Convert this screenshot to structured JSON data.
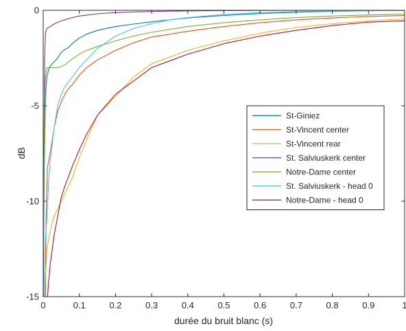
{
  "chart_data": {
    "type": "line",
    "xlabel": "durée du bruit blanc (s)",
    "ylabel": "dB",
    "xlim": [
      0,
      1
    ],
    "ylim": [
      -15,
      0
    ],
    "xticks": [
      0,
      0.1,
      0.2,
      0.3,
      0.4,
      0.5,
      0.6,
      0.7,
      0.8,
      0.9,
      1
    ],
    "xtick_labels": [
      "0",
      "0.1",
      "0.2",
      "0.3",
      "0.4",
      "0.5",
      "0.6",
      "0.7",
      "0.8",
      "0.9",
      "1"
    ],
    "yticks": [
      0,
      -5,
      -10,
      -15
    ],
    "ytick_labels": [
      "0",
      "-5",
      "-10",
      "-15"
    ],
    "grid": false,
    "legend_position": "right",
    "series": [
      {
        "name": "St-Giniez",
        "color": "#0072BD",
        "x": [
          0,
          0.003,
          0.006,
          0.01,
          0.015,
          0.02,
          0.03,
          0.04,
          0.05,
          0.06,
          0.07,
          0.08,
          0.1,
          0.12,
          0.15,
          0.2,
          0.25,
          0.3,
          0.4,
          0.5,
          0.6,
          0.7,
          0.8,
          0.9,
          1.0
        ],
        "y": [
          -15,
          -8,
          -4.5,
          -3.5,
          -3.1,
          -2.9,
          -2.7,
          -2.5,
          -2.2,
          -2.05,
          -1.95,
          -1.75,
          -1.45,
          -1.25,
          -1.05,
          -0.85,
          -0.72,
          -0.6,
          -0.4,
          -0.27,
          -0.17,
          -0.1,
          -0.05,
          -0.02,
          0
        ]
      },
      {
        "name": "St-Vincent center",
        "color": "#D95319",
        "x": [
          0.006,
          0.008,
          0.01,
          0.012,
          0.015,
          0.02,
          0.025,
          0.03,
          0.04,
          0.05,
          0.06,
          0.07,
          0.08,
          0.1,
          0.12,
          0.15,
          0.2,
          0.25,
          0.3,
          0.4,
          0.5,
          0.6,
          0.7,
          0.8,
          0.9,
          1.0
        ],
        "y": [
          -15,
          -11,
          -9.3,
          -8.2,
          -7.9,
          -7.4,
          -6.8,
          -6.2,
          -5.3,
          -4.8,
          -4.4,
          -4.1,
          -3.9,
          -3.4,
          -3.0,
          -2.6,
          -2.1,
          -1.7,
          -1.4,
          -1.1,
          -0.85,
          -0.65,
          -0.5,
          -0.4,
          -0.32,
          -0.27
        ]
      },
      {
        "name": "St-Vincent rear",
        "color": "#EDB120",
        "x": [
          0.004,
          0.006,
          0.008,
          0.01,
          0.015,
          0.02,
          0.03,
          0.04,
          0.05,
          0.06,
          0.08,
          0.1,
          0.12,
          0.15,
          0.2,
          0.25,
          0.3,
          0.4,
          0.5,
          0.6,
          0.7,
          0.8,
          0.9,
          1.0
        ],
        "y": [
          -15,
          -13.8,
          -13.3,
          -12.5,
          -12.0,
          -11.5,
          -10.8,
          -10.4,
          -10.0,
          -9.6,
          -8.8,
          -7.7,
          -6.8,
          -5.5,
          -4.5,
          -3.5,
          -2.8,
          -2.1,
          -1.6,
          -1.2,
          -0.9,
          -0.7,
          -0.55,
          -0.45
        ]
      },
      {
        "name": "St. Salviuskerk center",
        "color": "#7E2F8E",
        "x": [
          0,
          0.002,
          0.004,
          0.006,
          0.01,
          0.015,
          0.02,
          0.03,
          0.05,
          0.08,
          0.1,
          0.15,
          0.2,
          0.3,
          0.4,
          0.5,
          0.7,
          1.0
        ],
        "y": [
          -15,
          -7,
          -2.5,
          -1.2,
          -0.95,
          -0.9,
          -0.85,
          -0.72,
          -0.55,
          -0.38,
          -0.3,
          -0.18,
          -0.12,
          -0.06,
          -0.03,
          -0.015,
          -0.005,
          0
        ]
      },
      {
        "name": "Notre-Dame center",
        "color": "#77AC30",
        "x": [
          0,
          0.002,
          0.004,
          0.006,
          0.01,
          0.015,
          0.02,
          0.03,
          0.04,
          0.05,
          0.06,
          0.08,
          0.1,
          0.12,
          0.15,
          0.2,
          0.25,
          0.3,
          0.4,
          0.5,
          0.6,
          0.7,
          0.8,
          0.9,
          1.0
        ],
        "y": [
          -15,
          -8,
          -4.5,
          -3.5,
          -3.0,
          -3.0,
          -3.0,
          -3.0,
          -3.0,
          -2.95,
          -2.85,
          -2.55,
          -2.3,
          -2.1,
          -1.9,
          -1.6,
          -1.35,
          -1.15,
          -0.85,
          -0.65,
          -0.5,
          -0.38,
          -0.3,
          -0.24,
          -0.2
        ]
      },
      {
        "name": "St. Salviuskerk - head 0",
        "color": "#4DBEEE",
        "x": [
          0.002,
          0.004,
          0.006,
          0.008,
          0.01,
          0.015,
          0.02,
          0.03,
          0.04,
          0.05,
          0.06,
          0.08,
          0.1,
          0.12,
          0.15,
          0.2,
          0.25,
          0.3,
          0.35,
          0.4,
          0.5,
          0.6,
          0.7,
          0.8,
          0.9,
          1.0
        ],
        "y": [
          -15,
          -13,
          -12,
          -11.5,
          -11.0,
          -9.0,
          -7.8,
          -6.2,
          -5.0,
          -4.4,
          -4.0,
          -3.5,
          -3.0,
          -2.6,
          -2.0,
          -1.35,
          -0.95,
          -0.7,
          -0.5,
          -0.38,
          -0.22,
          -0.12,
          -0.07,
          -0.04,
          -0.02,
          -0.01
        ]
      },
      {
        "name": "Notre-Dame - head 0",
        "color": "#A2142F",
        "x": [
          0.012,
          0.015,
          0.02,
          0.025,
          0.03,
          0.04,
          0.05,
          0.06,
          0.08,
          0.1,
          0.12,
          0.15,
          0.2,
          0.25,
          0.3,
          0.4,
          0.5,
          0.6,
          0.7,
          0.8,
          0.9,
          1.0
        ],
        "y": [
          -15,
          -14.2,
          -13.2,
          -12.5,
          -11.8,
          -10.8,
          -9.8,
          -9.2,
          -8.2,
          -7.3,
          -6.5,
          -5.5,
          -4.4,
          -3.7,
          -3.0,
          -2.3,
          -1.75,
          -1.35,
          -1.05,
          -0.8,
          -0.62,
          -0.55
        ]
      }
    ]
  }
}
